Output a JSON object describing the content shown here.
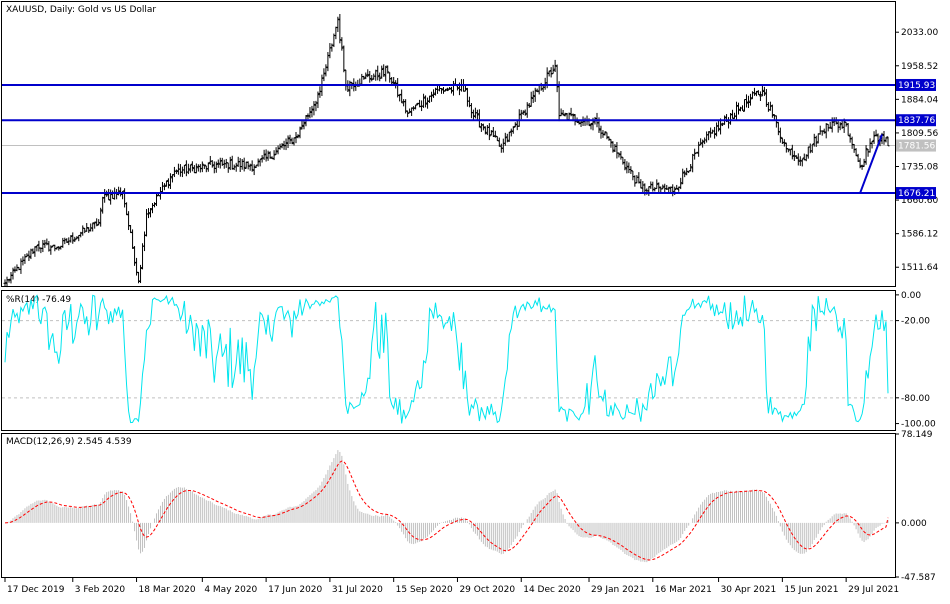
{
  "chart_data": [
    {
      "id": "price",
      "type": "candlestick",
      "title": "XAUUSD, Daily:  Gold vs US Dollar",
      "ylim": [
        1470,
        2100
      ],
      "y_ticks": [
        "2033.00",
        "1958.52",
        "1884.04",
        "1809.56",
        "1735.08",
        "1660.60",
        "1586.12",
        "1511.64"
      ],
      "y_tick_values": [
        2033.0,
        1958.52,
        1884.04,
        1809.56,
        1735.08,
        1660.6,
        1586.12,
        1511.64
      ],
      "current_price": {
        "value": 1781.56,
        "label": "1781.56",
        "color": "#c0c0c0"
      },
      "levels": [
        {
          "value": 1915.93,
          "label": "1915.93",
          "color": "#0000cc"
        },
        {
          "value": 1837.76,
          "label": "1837.76",
          "color": "#0000cc"
        },
        {
          "value": 1676.21,
          "label": "1676.21",
          "color": "#0000cc"
        }
      ],
      "trendline": {
        "from": [
          "2021-08-09",
          1676.21
        ],
        "to": [
          "2021-08-24",
          1806
        ],
        "color": "#0000cc"
      },
      "series_close_anchors": [
        [
          "2019-12-17",
          1476
        ],
        [
          "2020-01-08",
          1560
        ],
        [
          "2020-01-22",
          1555
        ],
        [
          "2020-02-20",
          1611
        ],
        [
          "2020-02-24",
          1665
        ],
        [
          "2020-03-09",
          1680
        ],
        [
          "2020-03-19",
          1480
        ],
        [
          "2020-03-25",
          1630
        ],
        [
          "2020-04-14",
          1725
        ],
        [
          "2020-05-18",
          1740
        ],
        [
          "2020-06-10",
          1738
        ],
        [
          "2020-07-08",
          1800
        ],
        [
          "2020-07-24",
          1902
        ],
        [
          "2020-08-06",
          2062
        ],
        [
          "2020-08-12",
          1915
        ],
        [
          "2020-08-25",
          1930
        ],
        [
          "2020-09-10",
          1945
        ],
        [
          "2020-09-24",
          1853
        ],
        [
          "2020-10-15",
          1905
        ],
        [
          "2020-11-04",
          1908
        ],
        [
          "2020-11-09",
          1855
        ],
        [
          "2020-11-30",
          1776
        ],
        [
          "2020-12-15",
          1855
        ],
        [
          "2021-01-06",
          1959
        ],
        [
          "2021-01-08",
          1848
        ],
        [
          "2021-02-04",
          1832
        ],
        [
          "2021-03-08",
          1688
        ],
        [
          "2021-03-31",
          1684
        ],
        [
          "2021-04-21",
          1794
        ],
        [
          "2021-05-20",
          1878
        ],
        [
          "2021-06-01",
          1904
        ],
        [
          "2021-06-17",
          1775
        ],
        [
          "2021-06-29",
          1752
        ],
        [
          "2021-07-15",
          1829
        ],
        [
          "2021-07-29",
          1828
        ],
        [
          "2021-08-09",
          1735
        ],
        [
          "2021-08-16",
          1787
        ],
        [
          "2021-08-24",
          1806
        ],
        [
          "2021-08-27",
          1781
        ]
      ]
    },
    {
      "id": "williams",
      "type": "line",
      "title": "%R(14) -76.49",
      "ylim": [
        -105,
        3
      ],
      "y_ticks": [
        "0.00",
        "-20.00",
        "-80.00",
        "-100.00"
      ],
      "y_tick_values": [
        0,
        -20,
        -80,
        -100
      ],
      "levels": [
        -20,
        -80
      ],
      "color": "#00e5ee",
      "last_value": -76.49
    },
    {
      "id": "macd",
      "type": "bar+line",
      "title": "MACD(12,26,9) 2.545 4.539",
      "ylim": [
        -47.587,
        78.149
      ],
      "y_ticks": [
        "78.149",
        "0.000",
        "-47.587"
      ],
      "y_tick_values": [
        78.149,
        0,
        -47.587
      ],
      "histogram_color": "#c0c0c0",
      "signal_color": "#ff0000",
      "macd_last": 2.545,
      "signal_last": 4.539
    }
  ],
  "x_axis": {
    "ticks": [
      "17 Dec 2019",
      "3 Feb 2020",
      "18 Mar 2020",
      "4 May 2020",
      "17 Jun 2020",
      "31 Jul 2020",
      "15 Sep 2020",
      "29 Oct 2020",
      "14 Dec 2020",
      "29 Jan 2021",
      "16 Mar 2021",
      "30 Apr 2021",
      "15 Jun 2021",
      "29 Jul 2021"
    ],
    "tick_dates": [
      "2019-12-17",
      "2020-02-03",
      "2020-03-18",
      "2020-05-04",
      "2020-06-17",
      "2020-07-31",
      "2020-09-15",
      "2020-10-29",
      "2020-12-14",
      "2021-01-29",
      "2021-03-16",
      "2021-04-30",
      "2021-06-15",
      "2021-07-29"
    ]
  }
}
